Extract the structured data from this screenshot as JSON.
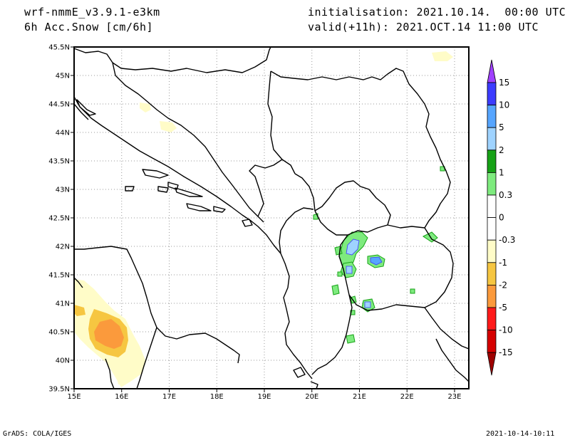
{
  "header": {
    "model": "wrf-nmmE_v3.9.1-e3km",
    "field": "6h Acc.Snow [cm/6h]",
    "init": "initialisation: 2021.10.14.  00:00 UTC",
    "valid": "valid(+11h): 2021.OCT.14 11:00 UTC"
  },
  "map": {
    "lon_ticks": [
      "15E",
      "16E",
      "17E",
      "18E",
      "19E",
      "20E",
      "21E",
      "22E",
      "23E"
    ],
    "lat_ticks": [
      "39.5N",
      "40N",
      "40.5N",
      "41N",
      "41.5N",
      "42N",
      "42.5N",
      "43N",
      "43.5N",
      "44N",
      "44.5N",
      "45N",
      "45.5N"
    ],
    "lon_range": [
      15,
      23.3
    ],
    "lat_range": [
      39.5,
      45.5
    ],
    "grid": "dotted"
  },
  "colorbar": {
    "labels": [
      "15",
      "10",
      "5",
      "2",
      "1",
      "0.3",
      "0",
      "-0.3",
      "-1",
      "-2",
      "-5",
      "-10",
      "-15"
    ],
    "colors": [
      "#a040ff",
      "#3c3cff",
      "#56a5ff",
      "#9fd3ff",
      "#17a217",
      "#7eeb7e",
      "#ffffff",
      "#ffffff",
      "#fffcc8",
      "#f6c641",
      "#fb9a3c",
      "#ff1a1a",
      "#d50000",
      "#9e0000"
    ]
  },
  "footer": {
    "left": "GrADS: COLA/IGES",
    "right": "2021-10-14-10:11"
  }
}
